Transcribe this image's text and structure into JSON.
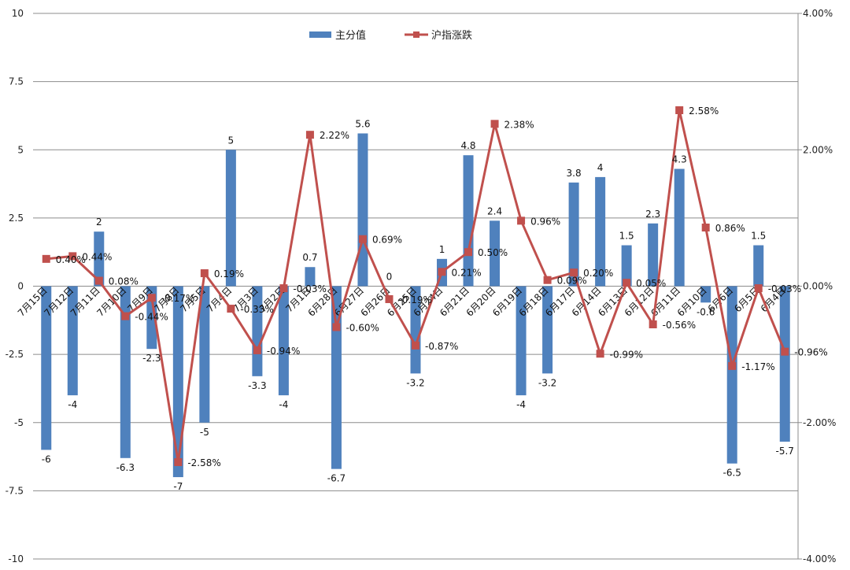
{
  "chart_data": {
    "type": "bar+line",
    "categories": [
      "7月15日",
      "7月12日",
      "7月11日",
      "7月10日",
      "7月9日",
      "7月8日",
      "7月5日",
      "7月4日",
      "7月3日",
      "7月2日",
      "7月1日",
      "6月28日",
      "6月27日",
      "6月26日",
      "6月25日",
      "6月24日",
      "6月21日",
      "6月20日",
      "6月19日",
      "6月18日",
      "6月17日",
      "6月14日",
      "6月13日",
      "6月12日",
      "6月11日",
      "6月10日",
      "6月6日",
      "6月5日",
      "6月4日"
    ],
    "series": [
      {
        "name": "主分值",
        "type": "bar",
        "axis": "left",
        "color": "#4F81BD",
        "values": [
          -6,
          -4,
          2,
          -6.3,
          -2.3,
          -7,
          -5,
          5,
          -3.3,
          -4,
          0.7,
          -6.7,
          5.6,
          0,
          -3.2,
          1,
          4.8,
          2.4,
          -4,
          -3.2,
          3.8,
          4,
          1.5,
          2.3,
          4.3,
          -0.6,
          -6.5,
          1.5,
          -5.7
        ],
        "labels": [
          "-6",
          "-4",
          "2",
          "-6.3",
          "-2.3",
          "-7",
          "-5",
          "5",
          "-3.3",
          "-4",
          "0.7",
          "-6.7",
          "5.6",
          "0",
          "-3.2",
          "1",
          "4.8",
          "2.4",
          "-4",
          "-3.2",
          "3.8",
          "4",
          "1.5",
          "2.3",
          "4.3",
          "-0.6",
          "-6.5",
          "1.5",
          "-5.7"
        ]
      },
      {
        "name": "沪指涨跌",
        "type": "line",
        "axis": "right",
        "color": "#C0504D",
        "values": [
          0.4,
          0.44,
          0.08,
          -0.44,
          -0.17,
          -2.58,
          0.19,
          -0.33,
          -0.94,
          -0.03,
          2.22,
          -0.6,
          0.69,
          -0.19,
          -0.87,
          0.21,
          0.5,
          2.38,
          0.96,
          0.09,
          0.2,
          -0.99,
          0.05,
          -0.56,
          2.58,
          0.86,
          -1.17,
          -0.03,
          -0.96
        ],
        "labels": [
          "0.40%",
          "0.44%",
          "0.08%",
          "-0.44%",
          "-0.17%",
          "-2.58%",
          "0.19%",
          "-0.33%",
          "-0.94%",
          "-0.03%",
          "2.22%",
          "-0.60%",
          "0.69%",
          "-0.19%",
          "-0.87%",
          "0.21%",
          "0.50%",
          "2.38%",
          "0.96%",
          "0.09%",
          "0.20%",
          "-0.99%",
          "0.05%",
          "-0.56%",
          "2.58%",
          "0.86%",
          "-1.17%",
          "-0.03%",
          "-0.96%"
        ]
      }
    ],
    "ylim_left": [
      -10,
      10
    ],
    "yticks_left": [
      "10",
      "7.5",
      "5",
      "2.5",
      "0",
      "-2.5",
      "-5",
      "-7.5",
      "-10"
    ],
    "ylim_right": [
      -4,
      4
    ],
    "yticks_right": [
      "4.00%",
      "2.00%",
      "0.00%",
      "-2.00%",
      "-4.00%"
    ],
    "grid": true,
    "legend": "top-center"
  }
}
